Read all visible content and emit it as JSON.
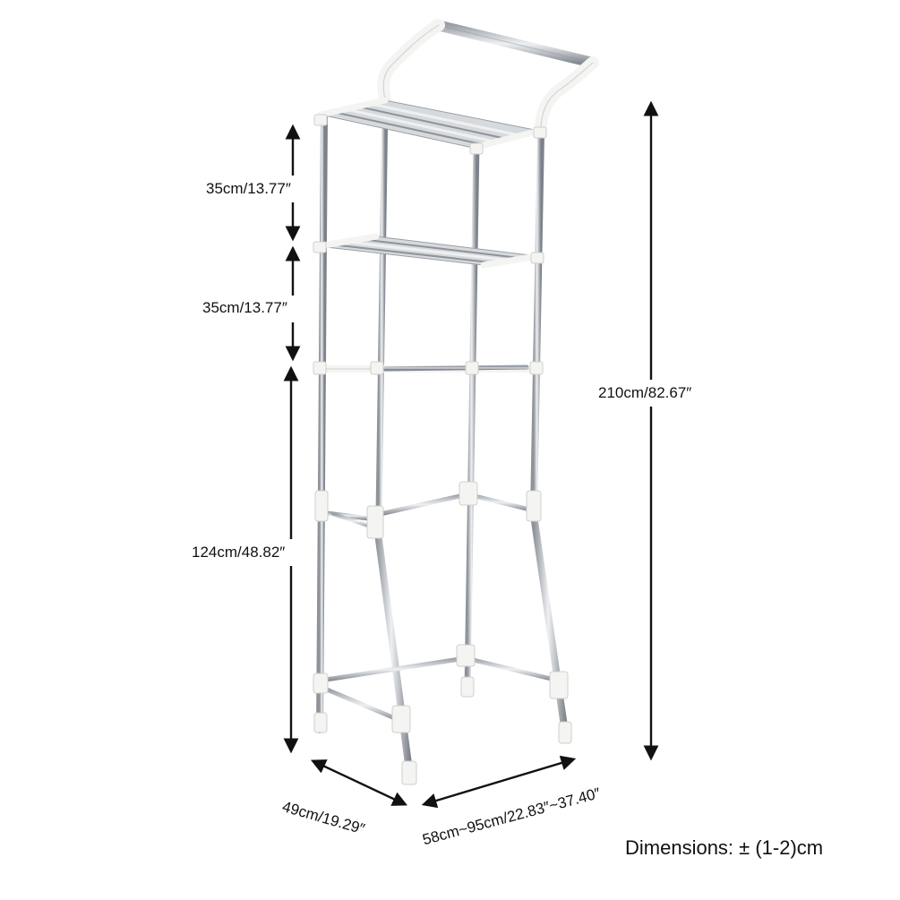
{
  "dimensions": {
    "shelf_gap_top": "35cm/13.77″",
    "shelf_gap_middle": "35cm/13.77″",
    "lower_height": "124cm/48.82″",
    "total_height": "210cm/82.67″",
    "depth": "49cm/19.29″",
    "width": "58cm~95cm/22.83″~37.40″"
  },
  "caption": "Dimensions: ± (1-2)cm",
  "colors": {
    "arrow": "#111111",
    "steel": "#c9ccd1",
    "steel_dark": "#8e939a",
    "connector": "#f4f4f2",
    "connector_edge": "#cfcfcb"
  }
}
